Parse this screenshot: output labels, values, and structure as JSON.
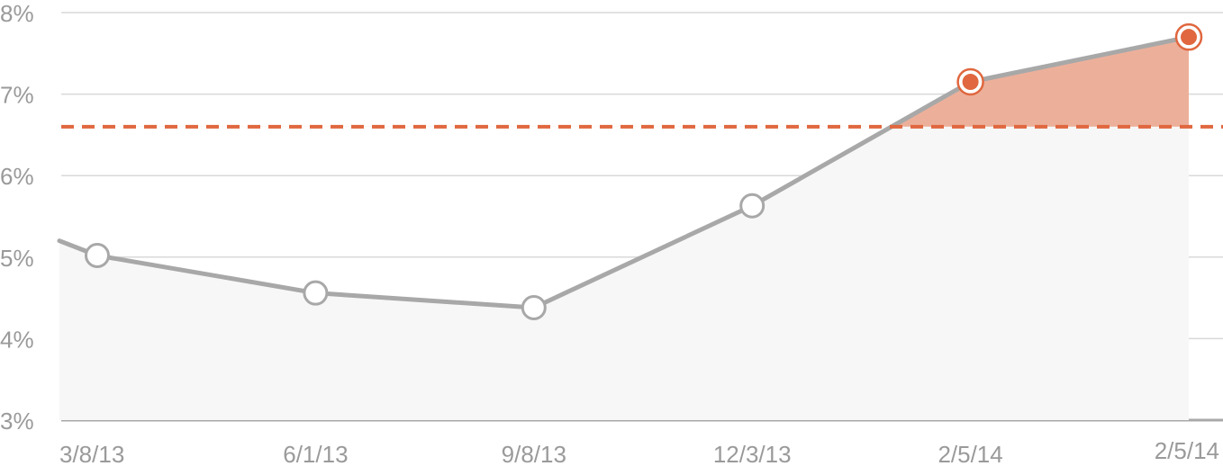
{
  "chart_data": {
    "type": "area",
    "x_labels": [
      "3/8/13",
      "6/1/13",
      "9/8/13",
      "12/3/13",
      "2/5/14",
      "2/5/14"
    ],
    "series": [
      {
        "values": [
          5.02,
          4.56,
          4.38,
          5.63,
          7.15,
          7.7
        ],
        "lead_in_value": 5.2,
        "highlighted_points": [
          false,
          false,
          false,
          false,
          true,
          true
        ]
      }
    ],
    "threshold": 6.6,
    "y_ticks": [
      3,
      4,
      5,
      6,
      7,
      8
    ],
    "y_tick_labels": [
      "3%",
      "4%",
      "5%",
      "6%",
      "7%",
      "8%"
    ],
    "ylim": [
      3,
      8
    ],
    "title": "",
    "xlabel": "",
    "ylabel": "",
    "grid": true,
    "legend": "none",
    "colors": {
      "line": "#a8a8a8",
      "area_fill": "#f7f7f7",
      "above_threshold_fill": "#ecb09a",
      "threshold": "#e0673f",
      "highlight_point": "#e0673f",
      "grid": "#d9d9d9",
      "baseline": "#a8a8a8",
      "labels": "#9a9a9a"
    }
  }
}
